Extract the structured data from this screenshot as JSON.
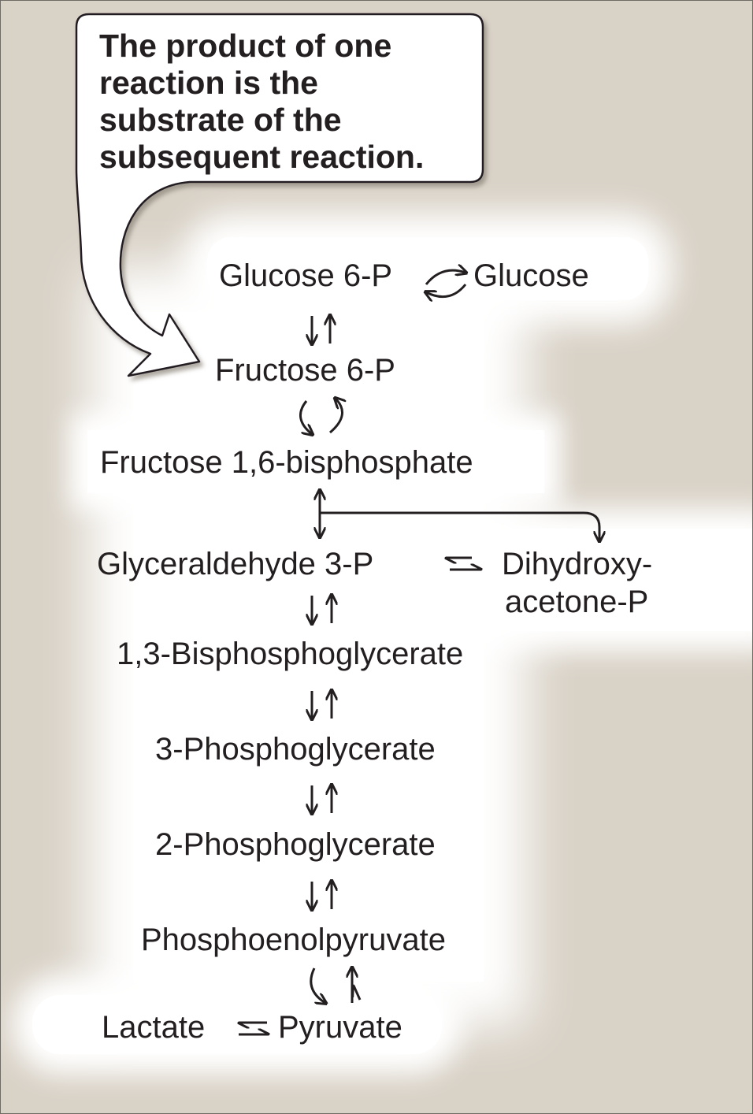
{
  "callout": {
    "lines": [
      "The product of one",
      "reaction is the",
      "substrate of the",
      "subsequent reaction."
    ]
  },
  "pathway": {
    "glucose_6p": "Glucose 6-P",
    "glucose": "Glucose",
    "fructose_6p": "Fructose 6-P",
    "fructose_16bp": "Fructose 1,6-bisphosphate",
    "glyceraldehyde_3p": "Glyceraldehyde 3-P",
    "dhap_line1": "Dihydroxy-",
    "dhap_line2": "acetone-P",
    "bpg_13": "1,3-Bisphosphoglycerate",
    "pg_3": "3-Phosphoglycerate",
    "pg_2": "2-Phosphoglycerate",
    "pep": "Phosphoenolpyruvate",
    "lactate": "Lactate",
    "pyruvate": "Pyruvate"
  },
  "colors": {
    "background": "#d9d2c7",
    "glow": "#ffffff",
    "text": "#231f20"
  }
}
